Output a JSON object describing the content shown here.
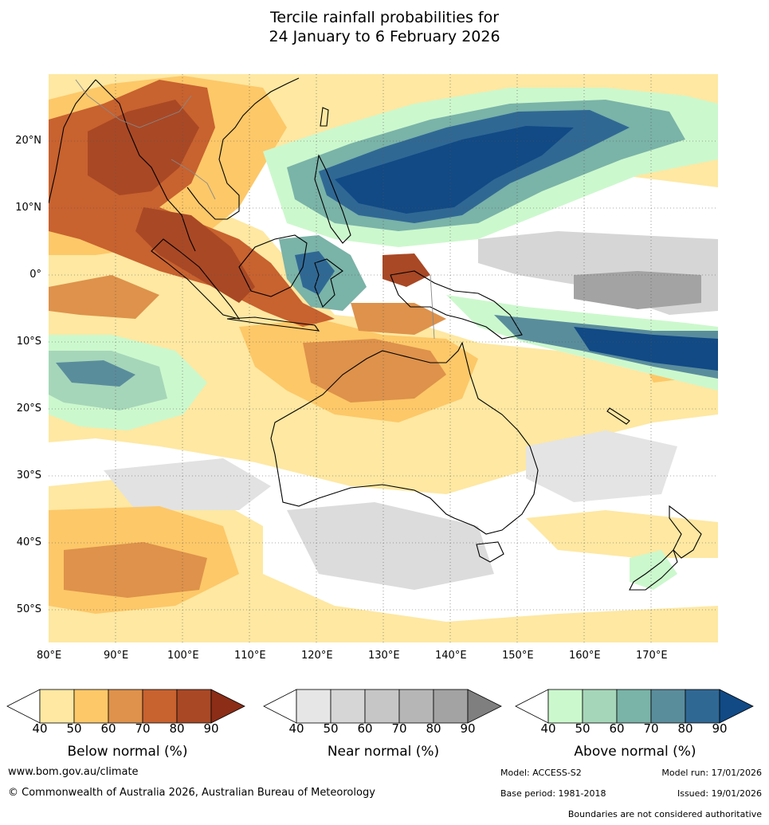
{
  "title": {
    "line1": "Tercile rainfall probabilities for",
    "line2": "24 January to 6 February 2026"
  },
  "map": {
    "lat_labels": [
      "20°N",
      "10°N",
      "0°",
      "10°S",
      "20°S",
      "30°S",
      "40°S",
      "50°S"
    ],
    "lon_labels": [
      "80°E",
      "90°E",
      "100°E",
      "110°E",
      "120°E",
      "130°E",
      "140°E",
      "150°E",
      "160°E",
      "170°E"
    ],
    "colors": {
      "ocean_bg": "#ffffff",
      "coastline": "#000000",
      "borders": "#888888",
      "gridline": "#555555"
    }
  },
  "legends": {
    "below": {
      "title": "Below normal (%)",
      "ticks": [
        "40",
        "50",
        "60",
        "70",
        "80",
        "90"
      ],
      "colors": [
        "#ffffff",
        "#fee8a2",
        "#fdc868",
        "#de924b",
        "#c8622f",
        "#a94825",
        "#8b2d17"
      ]
    },
    "near": {
      "title": "Near normal (%)",
      "ticks": [
        "40",
        "50",
        "60",
        "70",
        "80",
        "90"
      ],
      "colors": [
        "#ffffff",
        "#e6e6e6",
        "#d6d6d6",
        "#c6c6c6",
        "#b6b6b6",
        "#a3a3a3",
        "#7f7f7f"
      ]
    },
    "above": {
      "title": "Above normal (%)",
      "ticks": [
        "40",
        "50",
        "60",
        "70",
        "80",
        "90"
      ],
      "colors": [
        "#ffffff",
        "#ccf8cd",
        "#a6d6b9",
        "#7ab3a8",
        "#5a8d9c",
        "#306894",
        "#114a85"
      ]
    }
  },
  "footer": {
    "website": "www.bom.gov.au/climate",
    "copyright": "© Commonwealth of Australia 2026, Australian Bureau of Meteorology",
    "model": "Model: ACCESS-S2",
    "model_run": "Model run: 17/01/2026",
    "base_period": "Base period: 1981-2018",
    "issued": "Issued: 19/01/2026",
    "disclaimer": "Boundaries are not considered authoritative"
  }
}
